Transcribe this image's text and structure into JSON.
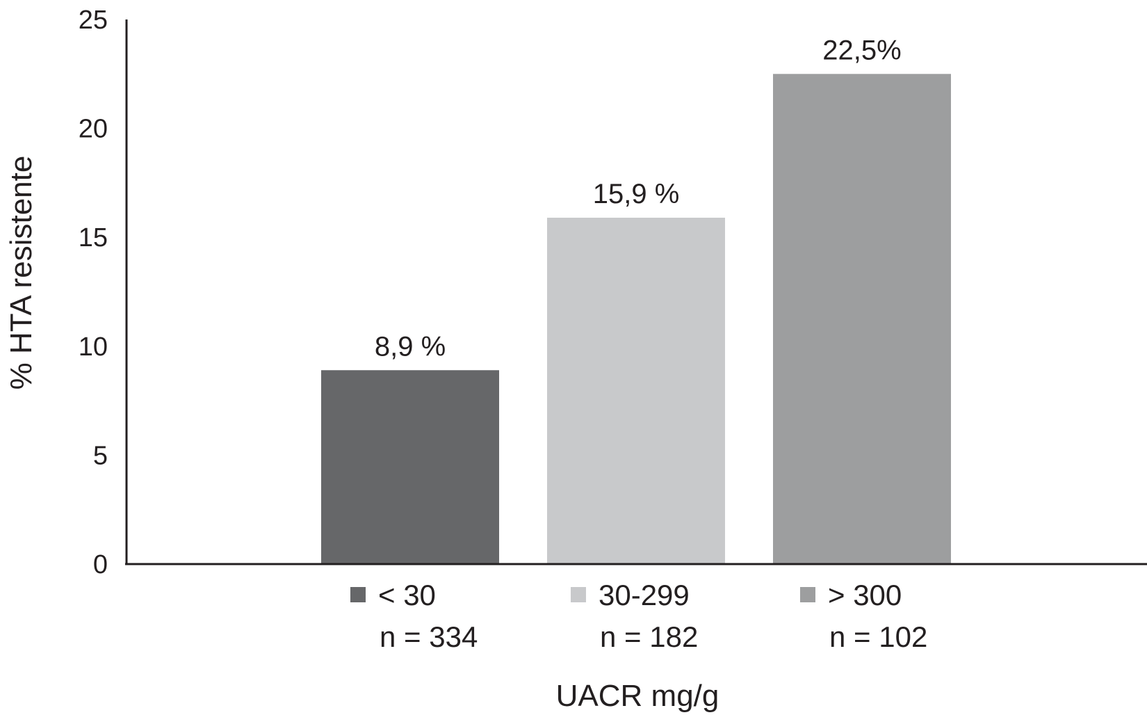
{
  "chart_data": {
    "type": "bar",
    "ylabel": "% HTA resistente",
    "xlabel": "UACR mg/g",
    "ylim": [
      0,
      25
    ],
    "yticks": [
      "0",
      "5",
      "10",
      "15",
      "20",
      "25"
    ],
    "grid": false,
    "legend_position": "bottom",
    "categories": [
      "< 30",
      "30-299",
      "> 300"
    ],
    "values": [
      8.9,
      15.9,
      22.5
    ],
    "data_labels": [
      "8,9 %",
      "15,9 %",
      "22,5%"
    ],
    "n_labels": [
      "n = 334",
      "n = 182",
      "n = 102"
    ],
    "colors": [
      "#666769",
      "#c8c9cb",
      "#9d9e9f"
    ],
    "axis_color": "#231f20"
  }
}
